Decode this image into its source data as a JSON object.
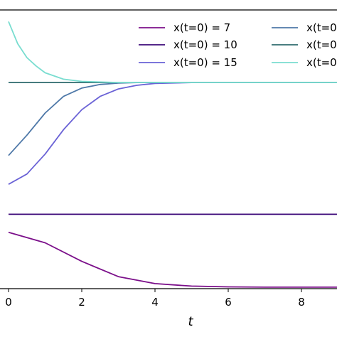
{
  "chart_data": {
    "type": "line",
    "xlabel": "t",
    "ylabel": "",
    "xlim": [
      0,
      9
    ],
    "ylim": [
      0,
      1
    ],
    "x_ticks": [
      0,
      2,
      4,
      6,
      8
    ],
    "x_tick_labels": [
      "0",
      "2",
      "4",
      "6",
      "8"
    ],
    "grid": false,
    "legend_position": "top-right",
    "legend_columns": 2,
    "series": [
      {
        "name": "x(t=0) = 7",
        "color": "#7b0f8a",
        "x": [
          0,
          1,
          2,
          3,
          4,
          5,
          6,
          7,
          8,
          9
        ],
        "y": [
          0.27,
          0.232,
          0.165,
          0.11,
          0.085,
          0.076,
          0.073,
          0.072,
          0.072,
          0.072
        ]
      },
      {
        "name": "x(t=0) = 10",
        "color": "#3d0a7a",
        "x": [
          0,
          9
        ],
        "y": [
          0.335,
          0.335
        ]
      },
      {
        "name": "x(t=0) = 15",
        "color": "#6a62d6",
        "x": [
          0,
          0.5,
          1,
          1.5,
          2,
          2.5,
          3,
          3.5,
          4,
          5,
          6,
          9
        ],
        "y": [
          0.443,
          0.48,
          0.552,
          0.64,
          0.712,
          0.76,
          0.787,
          0.8,
          0.807,
          0.81,
          0.81,
          0.81
        ]
      },
      {
        "name": "",
        "color": "#4e78a8",
        "x": [
          0,
          0.5,
          1,
          1.5,
          2,
          2.5,
          3,
          3.5,
          4,
          5,
          9
        ],
        "y": [
          0.547,
          0.62,
          0.7,
          0.76,
          0.79,
          0.803,
          0.808,
          0.81,
          0.81,
          0.81,
          0.81
        ]
      },
      {
        "name": "",
        "color": "#2f6b6e",
        "x": [
          0,
          9
        ],
        "y": [
          0.81,
          0.81
        ]
      },
      {
        "name": "",
        "color": "#79ddd0",
        "x": [
          0,
          0.25,
          0.5,
          0.75,
          1,
          1.5,
          2,
          3,
          4,
          9
        ],
        "y": [
          1.03,
          0.95,
          0.9,
          0.87,
          0.845,
          0.822,
          0.814,
          0.81,
          0.81,
          0.81
        ]
      }
    ]
  },
  "legend": {
    "labels": [
      "x(t=0) = 7",
      "x(t=0) = 10",
      "x(t=0) = 15",
      "x(t=0",
      "x(t=0",
      "x(t=0"
    ]
  }
}
